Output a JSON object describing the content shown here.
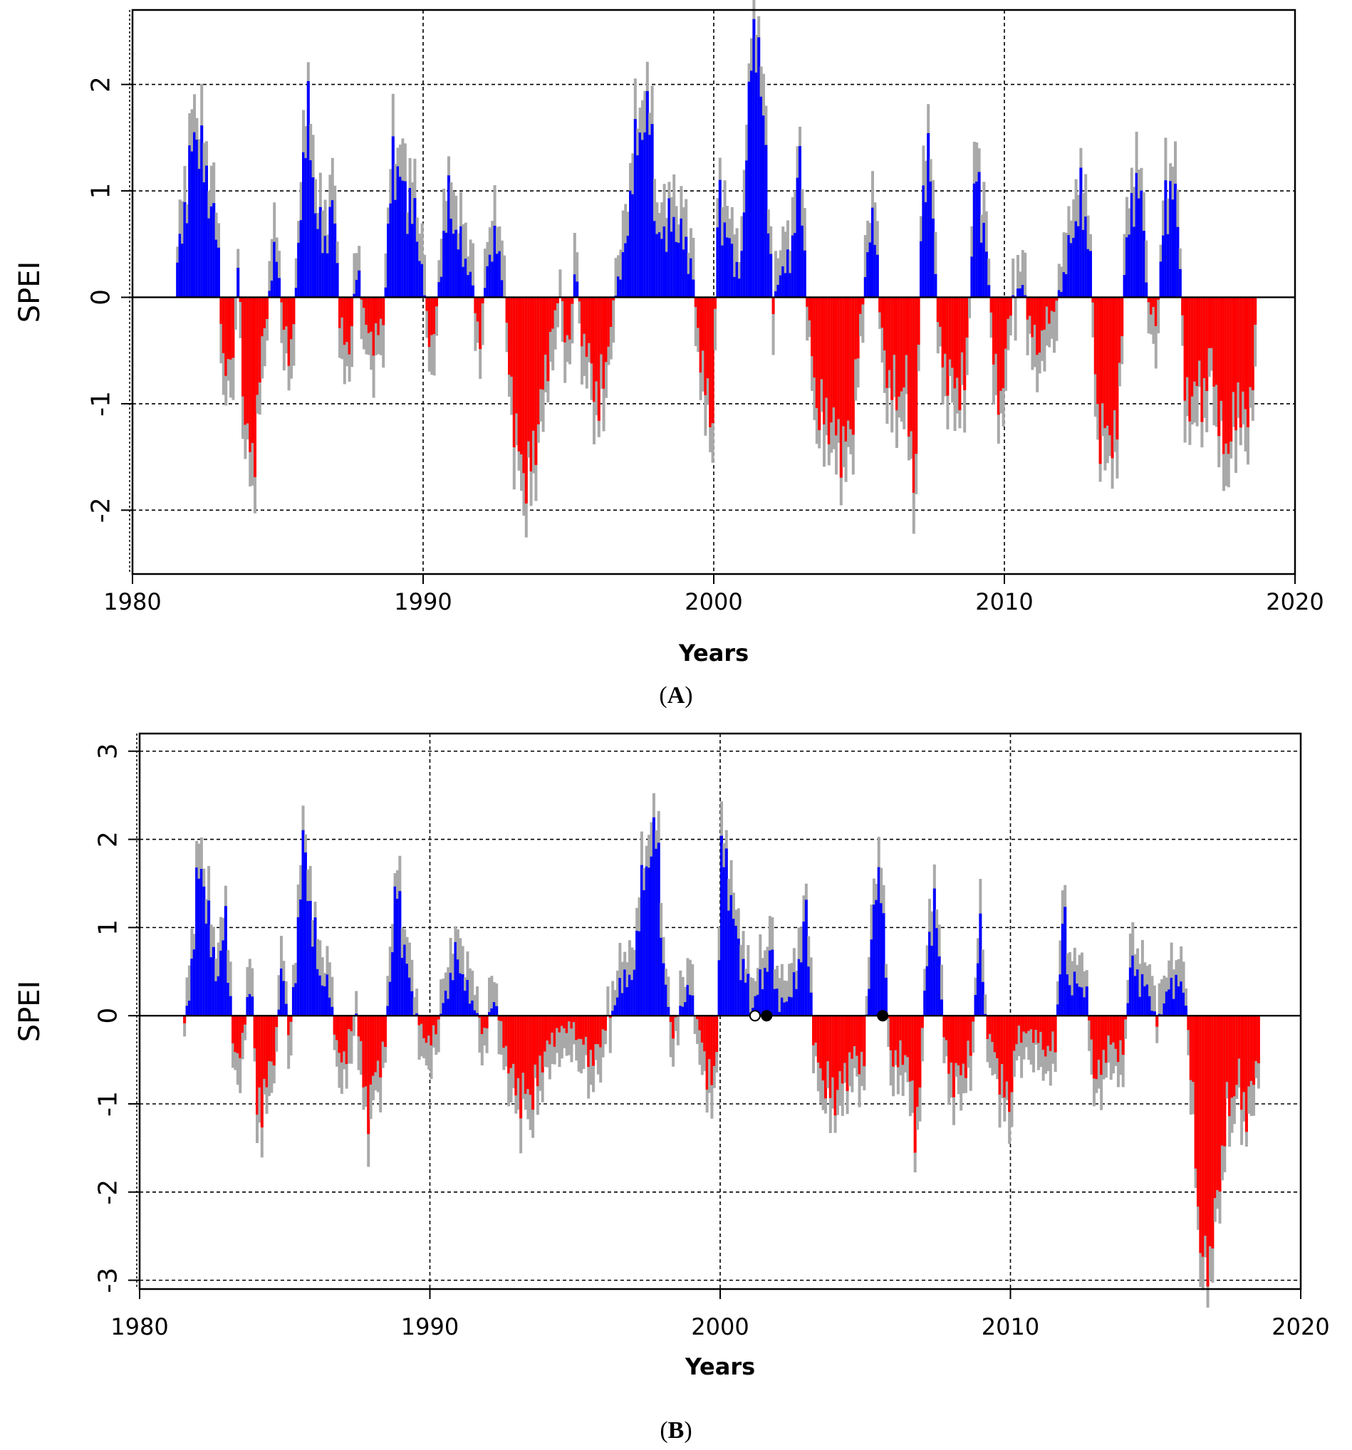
{
  "chart_data": [
    {
      "id": "A",
      "type": "bar",
      "caption_open": "(",
      "caption_letter": "A",
      "caption_close": ")",
      "xlabel": "Years",
      "ylabel": "SPEI",
      "xlim": [
        1980,
        2020
      ],
      "ylim": [
        -2.6,
        2.7
      ],
      "xticks": [
        1980,
        1990,
        2000,
        2010,
        2020
      ],
      "yticks": [
        -2,
        -1,
        0,
        1,
        2
      ],
      "xtick_labels": [
        "1980",
        "1990",
        "2000",
        "2010",
        "2020"
      ],
      "ytick_labels": [
        "-2",
        "-1",
        "0",
        "1",
        "2"
      ],
      "grid": true,
      "colors": {
        "positive": "#0000ff",
        "negative": "#ff0000",
        "spike": "#a9a9a9"
      },
      "start_year": 1981.5,
      "end_year": 2018.6,
      "keypoints": [
        [
          1981.5,
          0.3
        ],
        [
          1981.8,
          0.9
        ],
        [
          1982.1,
          1.6
        ],
        [
          1982.5,
          1.1
        ],
        [
          1982.9,
          0.5
        ],
        [
          1983.1,
          -0.8
        ],
        [
          1983.4,
          -0.5
        ],
        [
          1983.6,
          0.4
        ],
        [
          1983.8,
          -1.1
        ],
        [
          1984.1,
          -1.6
        ],
        [
          1984.4,
          -0.5
        ],
        [
          1984.7,
          0.1
        ],
        [
          1984.9,
          0.5
        ],
        [
          1985.2,
          -0.4
        ],
        [
          1985.4,
          -0.5
        ],
        [
          1985.6,
          0.1
        ],
        [
          1985.8,
          1.2
        ],
        [
          1986.0,
          1.7
        ],
        [
          1986.3,
          0.7
        ],
        [
          1986.6,
          0.5
        ],
        [
          1986.9,
          0.9
        ],
        [
          1987.1,
          -0.3
        ],
        [
          1987.4,
          -0.5
        ],
        [
          1987.7,
          0.3
        ],
        [
          1988.0,
          -0.3
        ],
        [
          1988.3,
          -0.4
        ],
        [
          1988.6,
          -0.2
        ],
        [
          1988.9,
          1.3
        ],
        [
          1989.3,
          1.0
        ],
        [
          1989.7,
          0.7
        ],
        [
          1989.95,
          0.2
        ],
        [
          1990.1,
          -0.3
        ],
        [
          1990.3,
          -0.4
        ],
        [
          1990.5,
          0.1
        ],
        [
          1990.8,
          0.9
        ],
        [
          1991.2,
          0.5
        ],
        [
          1991.6,
          0.2
        ],
        [
          1991.9,
          -0.4
        ],
        [
          1992.2,
          0.4
        ],
        [
          1992.5,
          0.5
        ],
        [
          1992.7,
          0.2
        ],
        [
          1992.9,
          -0.6
        ],
        [
          1993.2,
          -1.4
        ],
        [
          1993.5,
          -1.7
        ],
        [
          1993.8,
          -1.4
        ],
        [
          1994.1,
          -0.8
        ],
        [
          1994.4,
          -0.3
        ],
        [
          1994.7,
          0.1
        ],
        [
          1994.9,
          -0.6
        ],
        [
          1995.2,
          0.3
        ],
        [
          1995.4,
          -0.3
        ],
        [
          1995.7,
          -0.6
        ],
        [
          1996.0,
          -1.0
        ],
        [
          1996.3,
          -0.5
        ],
        [
          1996.6,
          0.1
        ],
        [
          1996.9,
          0.4
        ],
        [
          1997.2,
          1.3
        ],
        [
          1997.5,
          1.6
        ],
        [
          1997.8,
          1.7
        ],
        [
          1998.0,
          0.5
        ],
        [
          1998.4,
          0.7
        ],
        [
          1998.8,
          0.6
        ],
        [
          1999.2,
          0.3
        ],
        [
          1999.4,
          -0.3
        ],
        [
          1999.7,
          -0.9
        ],
        [
          1999.9,
          -1.2
        ],
        [
          2000.1,
          0.9
        ],
        [
          2000.4,
          0.6
        ],
        [
          2000.7,
          0.3
        ],
        [
          2000.9,
          0.2
        ],
        [
          2001.2,
          2.2
        ],
        [
          2001.5,
          2.4
        ],
        [
          2001.8,
          1.0
        ],
        [
          2002.0,
          -0.1
        ],
        [
          2002.3,
          0.3
        ],
        [
          2002.6,
          0.3
        ],
        [
          2002.9,
          1.3
        ],
        [
          2003.2,
          -0.2
        ],
        [
          2003.5,
          -1.0
        ],
        [
          2003.8,
          -1.1
        ],
        [
          2004.1,
          -1.2
        ],
        [
          2004.4,
          -1.4
        ],
        [
          2004.7,
          -1.2
        ],
        [
          2004.95,
          -0.4
        ],
        [
          2005.2,
          0.3
        ],
        [
          2005.5,
          0.8
        ],
        [
          2005.7,
          -0.3
        ],
        [
          2006.0,
          -0.8
        ],
        [
          2006.3,
          -0.9
        ],
        [
          2006.6,
          -0.8
        ],
        [
          2006.9,
          -1.9
        ],
        [
          2007.1,
          0.9
        ],
        [
          2007.4,
          1.3
        ],
        [
          2007.7,
          -0.4
        ],
        [
          2008.0,
          -0.7
        ],
        [
          2008.3,
          -0.8
        ],
        [
          2008.6,
          -0.8
        ],
        [
          2008.8,
          0.3
        ],
        [
          2009.0,
          1.2
        ],
        [
          2009.3,
          0.5
        ],
        [
          2009.6,
          -0.5
        ],
        [
          2009.8,
          -1.2
        ],
        [
          2010.0,
          -0.4
        ],
        [
          2010.3,
          0.05
        ],
        [
          2010.6,
          0.1
        ],
        [
          2010.8,
          -0.2
        ],
        [
          2011.1,
          -0.5
        ],
        [
          2011.4,
          -0.2
        ],
        [
          2011.7,
          -0.1
        ],
        [
          2012.0,
          0.2
        ],
        [
          2012.3,
          0.6
        ],
        [
          2012.6,
          0.9
        ],
        [
          2012.9,
          0.5
        ],
        [
          2013.2,
          -1.3
        ],
        [
          2013.5,
          -1.2
        ],
        [
          2013.8,
          -1.4
        ],
        [
          2014.1,
          0.3
        ],
        [
          2014.4,
          1.0
        ],
        [
          2014.7,
          0.9
        ],
        [
          2014.9,
          -0.1
        ],
        [
          2015.2,
          -0.2
        ],
        [
          2015.5,
          0.9
        ],
        [
          2015.8,
          1.0
        ],
        [
          2016.0,
          0.4
        ],
        [
          2016.2,
          -1.1
        ],
        [
          2016.5,
          -0.8
        ],
        [
          2016.8,
          -0.9
        ],
        [
          2017.1,
          -0.5
        ],
        [
          2017.4,
          -1.3
        ],
        [
          2017.7,
          -1.4
        ],
        [
          2018.0,
          -0.9
        ],
        [
          2018.3,
          -1.2
        ],
        [
          2018.6,
          -0.4
        ]
      ]
    },
    {
      "id": "B",
      "type": "bar",
      "caption_open": "(",
      "caption_letter": "B",
      "caption_close": ")",
      "xlabel": "Years",
      "ylabel": "SPEI",
      "xlim": [
        1980,
        2020
      ],
      "ylim": [
        -3.1,
        3.2
      ],
      "xticks": [
        1980,
        1990,
        2000,
        2010,
        2020
      ],
      "yticks": [
        -3,
        -2,
        -1,
        0,
        1,
        2,
        3
      ],
      "xtick_labels": [
        "1980",
        "1990",
        "2000",
        "2010",
        "2020"
      ],
      "ytick_labels": [
        "-3",
        "-2",
        "-1",
        "0",
        "1",
        "2",
        "3"
      ],
      "grid": true,
      "colors": {
        "positive": "#0000ff",
        "negative": "#ff0000",
        "spike": "#a9a9a9"
      },
      "start_year": 1981.5,
      "end_year": 2018.5,
      "missing_markers": [
        2001.2,
        2001.6,
        2005.6
      ],
      "keypoints": [
        [
          1981.5,
          -0.1
        ],
        [
          1981.7,
          0.3
        ],
        [
          1981.9,
          1.4
        ],
        [
          1982.1,
          1.7
        ],
        [
          1982.4,
          0.8
        ],
        [
          1982.7,
          0.4
        ],
        [
          1982.9,
          1.2
        ],
        [
          1983.2,
          -0.5
        ],
        [
          1983.5,
          -0.3
        ],
        [
          1983.8,
          0.5
        ],
        [
          1984.0,
          -1.1
        ],
        [
          1984.3,
          -0.8
        ],
        [
          1984.6,
          -0.4
        ],
        [
          1984.9,
          0.6
        ],
        [
          1985.1,
          -0.3
        ],
        [
          1985.3,
          0.4
        ],
        [
          1985.6,
          2.0
        ],
        [
          1985.9,
          1.0
        ],
        [
          1986.2,
          0.4
        ],
        [
          1986.5,
          0.3
        ],
        [
          1986.8,
          -0.5
        ],
        [
          1987.1,
          -0.4
        ],
        [
          1987.4,
          0.1
        ],
        [
          1987.8,
          -1.1
        ],
        [
          1988.1,
          -0.6
        ],
        [
          1988.4,
          -0.4
        ],
        [
          1988.8,
          1.5
        ],
        [
          1989.1,
          0.7
        ],
        [
          1989.4,
          0.1
        ],
        [
          1989.7,
          -0.2
        ],
        [
          1990.0,
          -0.3
        ],
        [
          1990.4,
          0.1
        ],
        [
          1990.9,
          0.7
        ],
        [
          1991.2,
          0.3
        ],
        [
          1991.5,
          0.1
        ],
        [
          1991.8,
          -0.2
        ],
        [
          1992.2,
          0.2
        ],
        [
          1992.5,
          -0.3
        ],
        [
          1992.9,
          -0.8
        ],
        [
          1993.3,
          -0.9
        ],
        [
          1993.6,
          -0.8
        ],
        [
          1993.9,
          -0.4
        ],
        [
          1994.3,
          -0.2
        ],
        [
          1994.8,
          -0.1
        ],
        [
          1995.2,
          -0.3
        ],
        [
          1995.6,
          -0.5
        ],
        [
          1995.9,
          -0.2
        ],
        [
          1996.3,
          0.1
        ],
        [
          1996.7,
          0.5
        ],
        [
          1996.9,
          0.3
        ],
        [
          1997.2,
          1.3
        ],
        [
          1997.5,
          1.8
        ],
        [
          1997.8,
          2.1
        ],
        [
          1998.0,
          0.5
        ],
        [
          1998.3,
          -0.2
        ],
        [
          1998.6,
          0.1
        ],
        [
          1998.9,
          0.3
        ],
        [
          1999.2,
          -0.1
        ],
        [
          1999.5,
          -0.6
        ],
        [
          1999.8,
          -0.8
        ],
        [
          2000.0,
          1.9
        ],
        [
          2000.3,
          1.4
        ],
        [
          2000.6,
          0.7
        ],
        [
          2000.9,
          0.4
        ],
        [
          2001.0,
          0.05
        ],
        [
          2001.7,
          0.7
        ],
        [
          2002.0,
          0.1
        ],
        [
          2002.3,
          0.2
        ],
        [
          2002.6,
          0.4
        ],
        [
          2002.9,
          1.2
        ],
        [
          2003.2,
          -0.4
        ],
        [
          2003.5,
          -0.7
        ],
        [
          2003.9,
          -0.9
        ],
        [
          2004.2,
          -0.7
        ],
        [
          2004.6,
          -0.4
        ],
        [
          2004.9,
          -0.6
        ],
        [
          2005.2,
          1.1
        ],
        [
          2005.5,
          1.6
        ],
        [
          2005.8,
          -0.4
        ],
        [
          2006.1,
          -0.5
        ],
        [
          2006.4,
          -0.4
        ],
        [
          2006.7,
          -1.4
        ],
        [
          2006.9,
          -0.3
        ],
        [
          2007.1,
          0.8
        ],
        [
          2007.4,
          1.2
        ],
        [
          2007.7,
          -0.4
        ],
        [
          2008.0,
          -0.7
        ],
        [
          2008.3,
          -0.6
        ],
        [
          2008.6,
          -0.4
        ],
        [
          2008.9,
          1.0
        ],
        [
          2009.1,
          -0.1
        ],
        [
          2009.4,
          -0.4
        ],
        [
          2009.7,
          -0.8
        ],
        [
          2009.9,
          -1.0
        ],
        [
          2010.2,
          -0.2
        ],
        [
          2010.5,
          -0.2
        ],
        [
          2010.8,
          -0.2
        ],
        [
          2011.2,
          -0.4
        ],
        [
          2011.5,
          -0.3
        ],
        [
          2011.8,
          1.2
        ],
        [
          2012.0,
          0.3
        ],
        [
          2012.3,
          0.4
        ],
        [
          2012.6,
          0.2
        ],
        [
          2012.9,
          -0.8
        ],
        [
          2013.2,
          -0.4
        ],
        [
          2013.5,
          -0.3
        ],
        [
          2013.8,
          -0.5
        ],
        [
          2014.1,
          0.6
        ],
        [
          2014.4,
          0.4
        ],
        [
          2014.7,
          0.3
        ],
        [
          2015.0,
          -0.1
        ],
        [
          2015.4,
          0.3
        ],
        [
          2015.7,
          0.4
        ],
        [
          2016.0,
          0.2
        ],
        [
          2016.3,
          -1.3
        ],
        [
          2016.5,
          -2.7
        ],
        [
          2016.8,
          -2.8
        ],
        [
          2017.1,
          -2.0
        ],
        [
          2017.4,
          -1.1
        ],
        [
          2017.8,
          -0.7
        ],
        [
          2018.1,
          -1.1
        ],
        [
          2018.5,
          -0.4
        ]
      ]
    }
  ]
}
